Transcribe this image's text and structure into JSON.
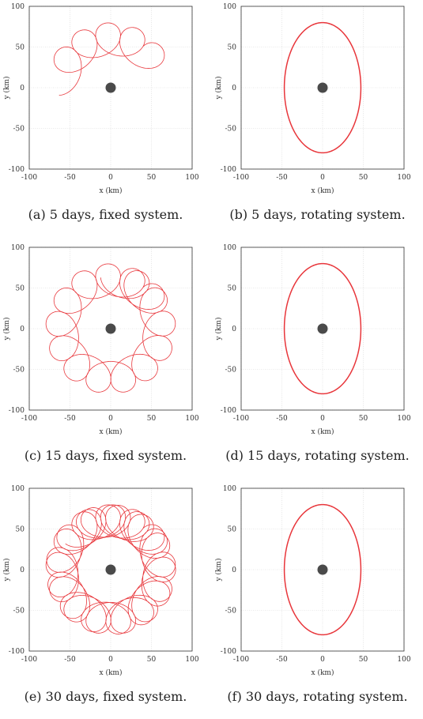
{
  "chart_data": [
    {
      "type": "line",
      "panel_label": "(a)",
      "caption": "5 days, fixed system.",
      "system": "fixed",
      "days": 5,
      "xlabel": "x (km)",
      "ylabel": "y (km)",
      "xlim": [
        -100,
        100
      ],
      "ylim": [
        -100,
        100
      ],
      "xticks": [
        "-100",
        "-50",
        "0",
        "50",
        "100"
      ],
      "yticks": [
        "-100",
        "-50",
        "0",
        "50",
        "100"
      ],
      "grid": true,
      "line_color": "#e8363b",
      "body_color": "#4a4a4a",
      "central_body": [
        0,
        0
      ]
    },
    {
      "type": "line",
      "panel_label": "(b)",
      "caption": "5 days, rotating system.",
      "system": "rotating",
      "days": 5,
      "xlabel": "x (km)",
      "ylabel": "y (km)",
      "xlim": [
        -100,
        100
      ],
      "ylim": [
        -100,
        100
      ],
      "xticks": [
        "-100",
        "-50",
        "0",
        "50",
        "100"
      ],
      "yticks": [
        "-100",
        "-50",
        "0",
        "50",
        "100"
      ],
      "grid": true,
      "line_color": "#e8363b",
      "body_color": "#4a4a4a",
      "central_body": [
        0,
        0
      ],
      "ellipse": {
        "center": [
          0,
          0
        ],
        "semi_x": 47,
        "semi_y": 80
      }
    },
    {
      "type": "line",
      "panel_label": "(c)",
      "caption": "15 days, fixed system.",
      "system": "fixed",
      "days": 15,
      "xlabel": "x (km)",
      "ylabel": "y (km)",
      "xlim": [
        -100,
        100
      ],
      "ylim": [
        -100,
        100
      ],
      "xticks": [
        "-100",
        "-50",
        "0",
        "50",
        "100"
      ],
      "yticks": [
        "-100",
        "-50",
        "0",
        "50",
        "100"
      ],
      "grid": true,
      "line_color": "#e8363b",
      "body_color": "#4a4a4a",
      "central_body": [
        0,
        0
      ]
    },
    {
      "type": "line",
      "panel_label": "(d)",
      "caption": "15 days, rotating system.",
      "system": "rotating",
      "days": 15,
      "xlabel": "x (km)",
      "ylabel": "y (km)",
      "xlim": [
        -100,
        100
      ],
      "ylim": [
        -100,
        100
      ],
      "xticks": [
        "-100",
        "-50",
        "0",
        "50",
        "100"
      ],
      "yticks": [
        "-100",
        "-50",
        "0",
        "50",
        "100"
      ],
      "grid": true,
      "line_color": "#e8363b",
      "body_color": "#4a4a4a",
      "central_body": [
        0,
        0
      ],
      "ellipse": {
        "center": [
          0,
          0
        ],
        "semi_x": 47,
        "semi_y": 80
      }
    },
    {
      "type": "line",
      "panel_label": "(e)",
      "caption": "30 days, fixed system.",
      "system": "fixed",
      "days": 30,
      "xlabel": "x (km)",
      "ylabel": "y (km)",
      "xlim": [
        -100,
        100
      ],
      "ylim": [
        -100,
        100
      ],
      "xticks": [
        "-100",
        "-50",
        "0",
        "50",
        "100"
      ],
      "yticks": [
        "-100",
        "-50",
        "0",
        "50",
        "100"
      ],
      "grid": true,
      "line_color": "#e8363b",
      "body_color": "#4a4a4a",
      "central_body": [
        0,
        0
      ]
    },
    {
      "type": "line",
      "panel_label": "(f)",
      "caption": "30 days, rotating system.",
      "system": "rotating",
      "days": 30,
      "xlabel": "x (km)",
      "ylabel": "y (km)",
      "xlim": [
        -100,
        100
      ],
      "ylim": [
        -100,
        100
      ],
      "xticks": [
        "-100",
        "-50",
        "0",
        "50",
        "100"
      ],
      "yticks": [
        "-100",
        "-50",
        "0",
        "50",
        "100"
      ],
      "grid": true,
      "line_color": "#e8363b",
      "body_color": "#4a4a4a",
      "central_body": [
        0,
        0
      ],
      "ellipse": {
        "center": [
          0,
          0
        ],
        "semi_x": 47,
        "semi_y": 80
      }
    }
  ]
}
